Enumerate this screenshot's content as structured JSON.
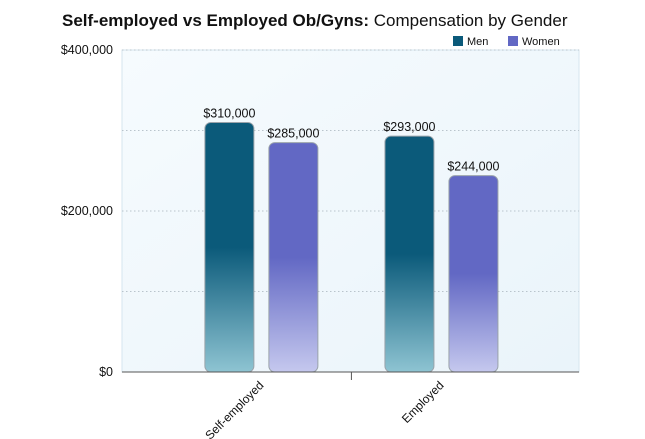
{
  "chart_data": {
    "type": "bar",
    "title_bold": "Self-employed vs Employed Ob/Gyns:",
    "title_rest": " Compensation by Gender",
    "categories": [
      "Self-employed",
      "Employed"
    ],
    "series": [
      {
        "name": "Men",
        "values": [
          310000,
          293000
        ],
        "labels": [
          "$310,000",
          "$293,000"
        ],
        "color": "#0b5a7a",
        "color_light": "#8ec4d2"
      },
      {
        "name": "Women",
        "values": [
          285000,
          244000
        ],
        "labels": [
          "$285,000",
          "$244,000"
        ],
        "color": "#6268c4",
        "color_light": "#c5c8ee"
      }
    ],
    "ylim": [
      0,
      400000
    ],
    "yticks": [
      0,
      200000,
      400000
    ],
    "ytick_labels": [
      "$0",
      "$200,000",
      "$400,000"
    ],
    "gridlines": [
      100000,
      200000,
      300000,
      400000
    ],
    "grid": true,
    "legend_position": "top-right",
    "plot_background": "#eef6fb"
  }
}
